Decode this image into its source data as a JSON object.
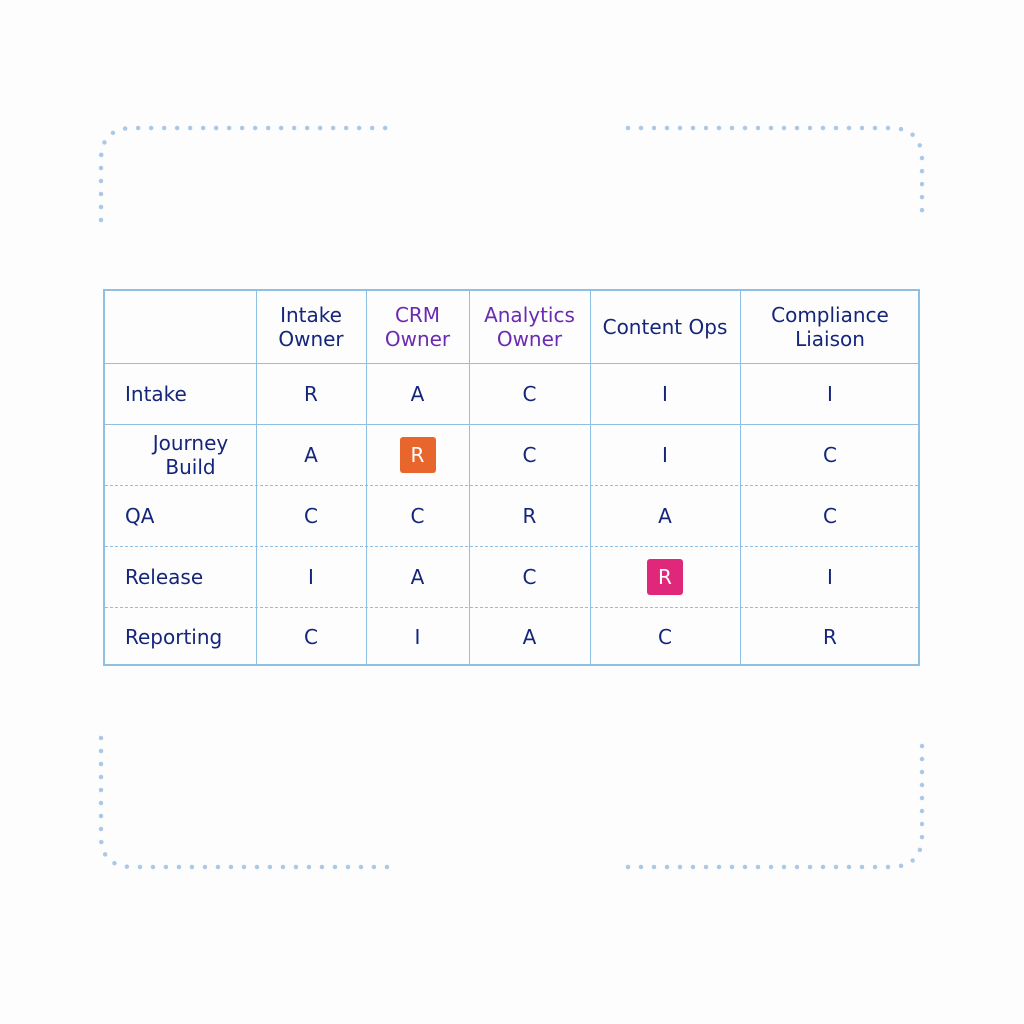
{
  "columns": [
    {
      "label": "",
      "color": "#15267a"
    },
    {
      "label": "Intake\nOwner",
      "color": "#15267a"
    },
    {
      "label": "CRM\nOwner",
      "color": "#6a2bb0"
    },
    {
      "label": "Analytics\nOwner",
      "color": "#6a2bb0"
    },
    {
      "label": "Content Ops",
      "color": "#15267a"
    },
    {
      "label": "Compliance\nLiaison",
      "color": "#15267a"
    }
  ],
  "rows": [
    {
      "label": "Intake",
      "cells": [
        "R",
        "A",
        "C",
        "I",
        "I"
      ]
    },
    {
      "label": "Journey Build",
      "cells": [
        "A",
        "R",
        "C",
        "I",
        "C"
      ]
    },
    {
      "label": "QA",
      "cells": [
        "C",
        "C",
        "R",
        "A",
        "C"
      ]
    },
    {
      "label": "Release",
      "cells": [
        "I",
        "A",
        "C",
        "R",
        "I"
      ]
    },
    {
      "label": "Reporting",
      "cells": [
        "C",
        "I",
        "A",
        "C",
        "R"
      ]
    }
  ],
  "highlights": [
    {
      "row": 1,
      "col": 1,
      "color": "#e8652c"
    },
    {
      "row": 3,
      "col": 3,
      "color": "#e0287a"
    }
  ],
  "colors": {
    "grid": "#8fc0e4",
    "text": "#15267a",
    "corner_dots": "#a9c9e6"
  }
}
